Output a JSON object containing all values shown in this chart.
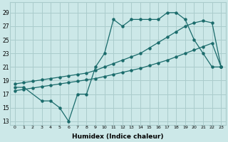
{
  "xlabel": "Humidex (Indice chaleur)",
  "bg_color": "#cce8e8",
  "grid_color": "#aacccc",
  "line_color": "#1a6b6b",
  "xlim": [
    -0.5,
    23.5
  ],
  "ylim": [
    12.5,
    30.5
  ],
  "xticks": [
    0,
    1,
    2,
    3,
    4,
    5,
    6,
    7,
    8,
    9,
    10,
    11,
    12,
    13,
    14,
    15,
    16,
    17,
    18,
    19,
    20,
    21,
    22,
    23
  ],
  "yticks": [
    13,
    15,
    17,
    19,
    21,
    23,
    25,
    27,
    29
  ],
  "line1_x": [
    0,
    1,
    3,
    4,
    5,
    6,
    7,
    8,
    9,
    10,
    11,
    12,
    13,
    14,
    15,
    16,
    17,
    18,
    19,
    20,
    21,
    22,
    23
  ],
  "line1_y": [
    18,
    18,
    16,
    16,
    15,
    13,
    17,
    17,
    21,
    23,
    28,
    27,
    28,
    28,
    28,
    28,
    29,
    29,
    28,
    25,
    23,
    21,
    21
  ],
  "line2_x": [
    0,
    1,
    2,
    3,
    4,
    5,
    6,
    7,
    8,
    9,
    10,
    11,
    12,
    13,
    14,
    15,
    16,
    17,
    18,
    19,
    20,
    21,
    22,
    23
  ],
  "line2_y": [
    18.5,
    18.7,
    18.9,
    19.1,
    19.3,
    19.5,
    19.7,
    19.9,
    20.1,
    20.5,
    21.0,
    21.5,
    22.0,
    22.5,
    23.0,
    23.8,
    24.6,
    25.4,
    26.2,
    27.0,
    27.5,
    27.8,
    27.5,
    21.0
  ],
  "line3_x": [
    0,
    1,
    2,
    3,
    4,
    5,
    6,
    7,
    8,
    9,
    10,
    11,
    12,
    13,
    14,
    15,
    16,
    17,
    18,
    19,
    20,
    21,
    22,
    23
  ],
  "line3_y": [
    17.5,
    17.7,
    17.9,
    18.1,
    18.3,
    18.5,
    18.7,
    18.9,
    19.1,
    19.3,
    19.6,
    19.9,
    20.2,
    20.5,
    20.8,
    21.2,
    21.6,
    22.0,
    22.5,
    23.0,
    23.5,
    24.0,
    24.5,
    21.0
  ]
}
